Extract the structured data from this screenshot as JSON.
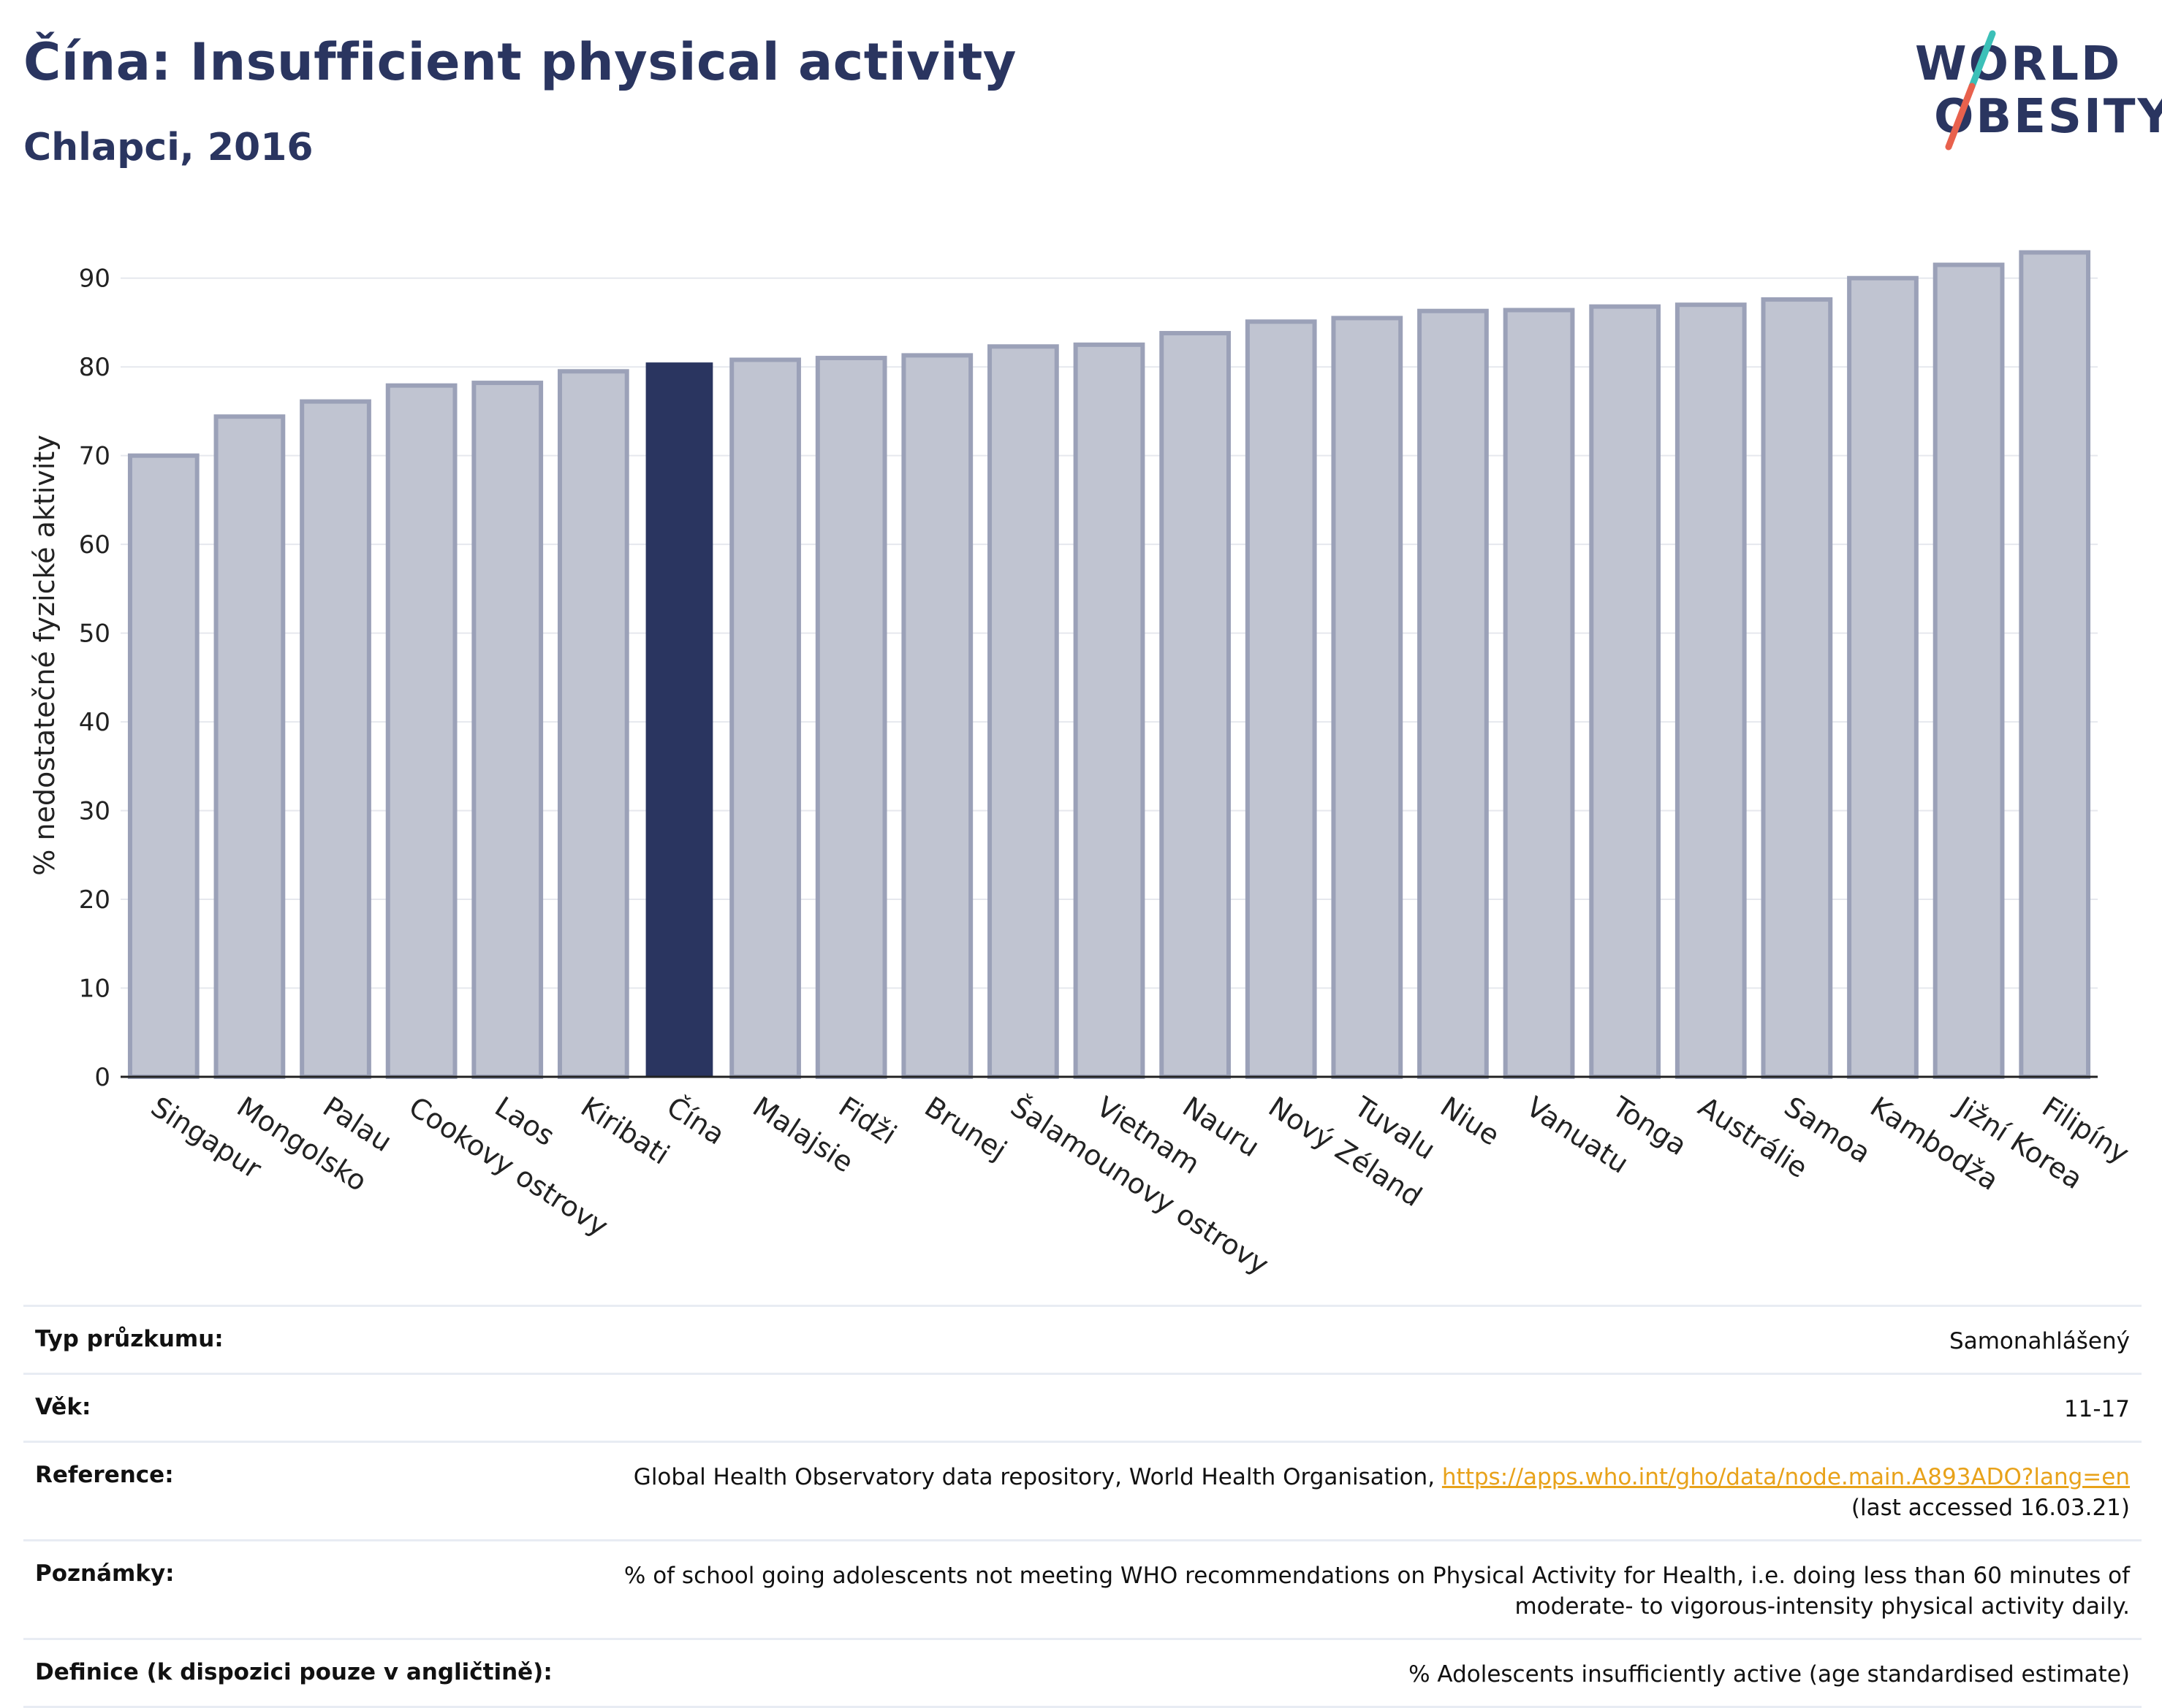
{
  "title": "Čína: Insufficient physical activity",
  "subtitle": "Chlapci, 2016",
  "logo": {
    "line1": "WORLD",
    "line2": "OBESITY"
  },
  "colors": {
    "highlight": "#2a3560",
    "bar": "#c0c4d1",
    "bar_border": "#9ba1b8",
    "accent_teal": "#3cc0b8",
    "accent_red": "#e8614d"
  },
  "chart_data": {
    "type": "bar",
    "ylabel": "% nedostatečné fyzické aktivity",
    "ylim": [
      0,
      95
    ],
    "yticks": [
      0,
      10,
      20,
      30,
      40,
      50,
      60,
      70,
      80,
      90
    ],
    "grid": true,
    "highlight": "Čína",
    "categories": [
      "Singapur",
      "Mongolsko",
      "Palau",
      "Cookovy ostrovy",
      "Laos",
      "Kiribati",
      "Čína",
      "Malajsie",
      "Fidži",
      "Brunej",
      "Šalamounovy ostrovy",
      "Vietnam",
      "Nauru",
      "Nový Zéland",
      "Tuvalu",
      "Niue",
      "Vanuatu",
      "Tonga",
      "Austrálie",
      "Samoa",
      "Kambodža",
      "Jižní Korea",
      "Filipíny"
    ],
    "values": [
      70.0,
      74.4,
      76.1,
      77.9,
      78.2,
      79.5,
      80.5,
      80.8,
      81.0,
      81.3,
      82.3,
      82.5,
      83.8,
      85.1,
      85.5,
      86.3,
      86.4,
      86.8,
      87.0,
      87.6,
      90.0,
      91.5,
      92.9
    ]
  },
  "info": {
    "survey_label": "Typ průzkumu:",
    "survey_value": "Samonahlášený",
    "age_label": "Věk:",
    "age_value": "11-17",
    "reference_label": "Reference:",
    "reference_text": "Global Health Observatory data repository, World Health Organisation, ",
    "reference_link": "https://apps.who.int/gho/data/node.main.A893ADO?lang=en",
    "reference_accessed": "(last accessed 16.03.21)",
    "notes_label": "Poznámky:",
    "notes_value": "% of school going adolescents not meeting WHO recommendations on Physical Activity for Health, i.e. doing less than 60 minutes of moderate- to vigorous-intensity physical activity daily.",
    "definition_label": "Definice (k dispozici pouze v angličtině):",
    "definition_value": "% Adolescents insufficiently active (age standardised estimate)"
  }
}
